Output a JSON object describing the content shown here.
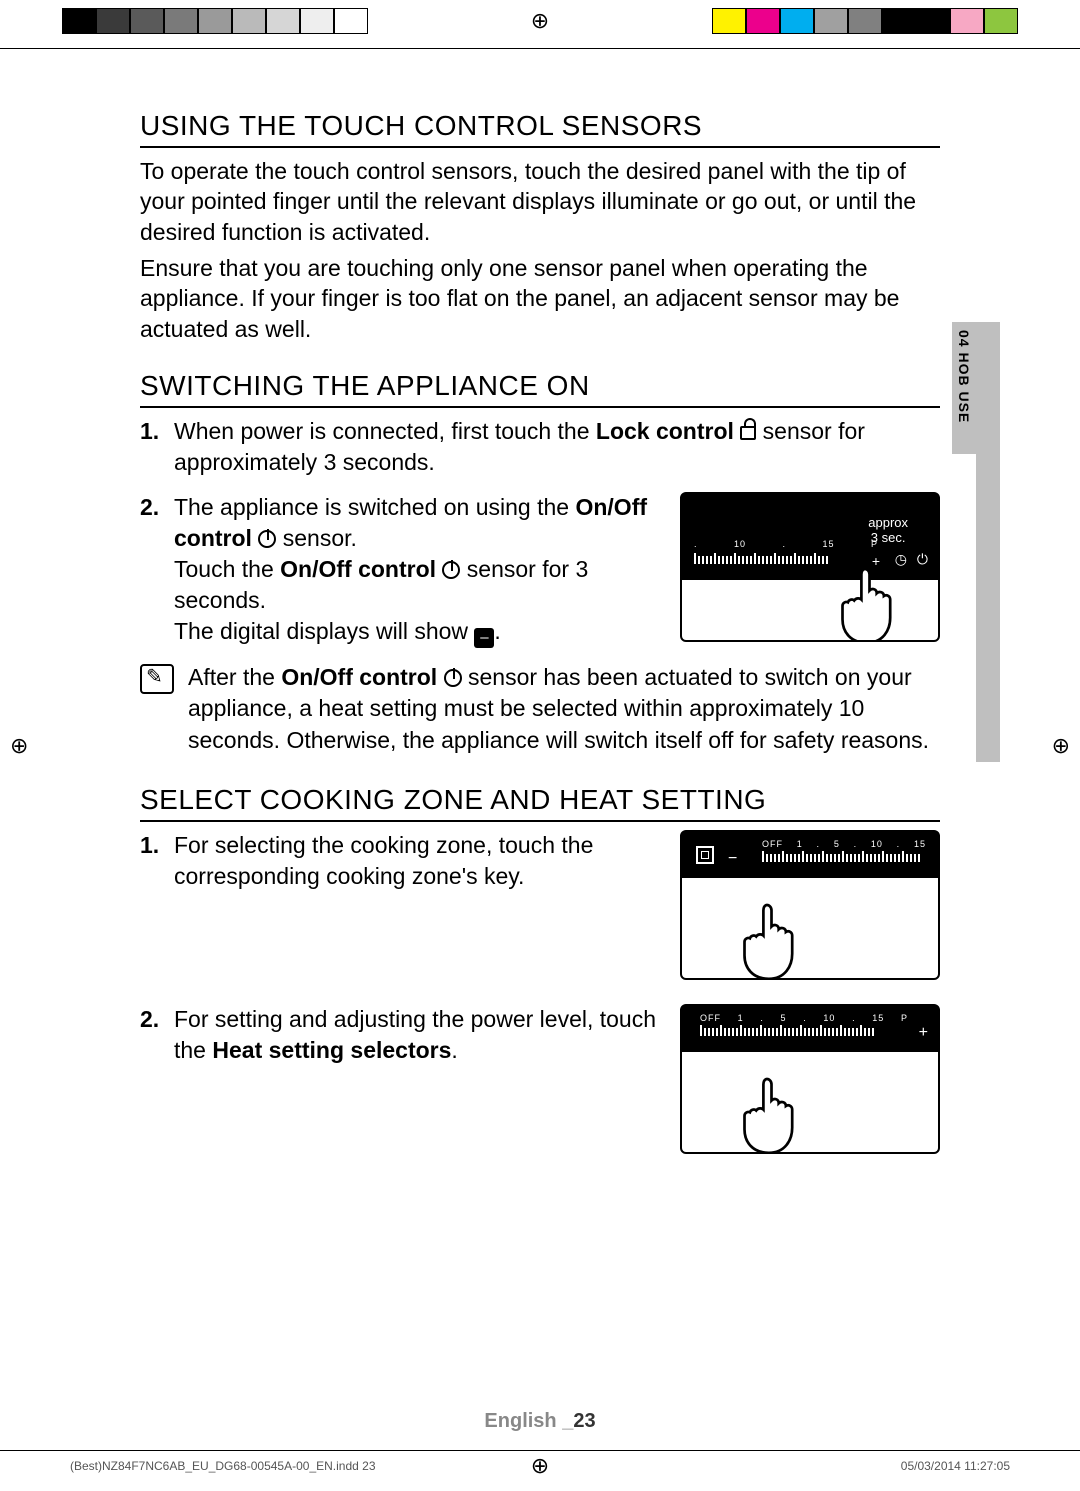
{
  "regbar": {
    "left_colors": [
      "#000000",
      "#3a3a3a",
      "#5a5a5a",
      "#7a7a7a",
      "#9a9a9a",
      "#bababa",
      "#d6d6d6",
      "#eeeeee",
      "#ffffff"
    ],
    "right_colors": [
      "#fff200",
      "#ec008c",
      "#00aeef",
      "#a0a0a0",
      "#808080",
      "#000000",
      "#000000",
      "#f7a8c4",
      "#8dc63f"
    ]
  },
  "side_tab_label": "04  HOB USE",
  "sections": {
    "s1": {
      "title": "USING THE TOUCH CONTROL SENSORS",
      "para1": "To operate the touch control sensors, touch the desired panel with the tip of your pointed finger until the relevant displays illuminate or go out, or until the desired function is activated.",
      "para2": "Ensure that you are touching only one sensor panel when operating the appliance. If your finger is too flat on the panel, an adjacent sensor may be actuated as well."
    },
    "s2": {
      "title": "SWITCHING THE APPLIANCE ON",
      "step1_a": "When power is connected, first touch the ",
      "step1_bold": "Lock control",
      "step1_b": " sensor for approximately 3 seconds.",
      "step2_a": "The appliance is switched on using the ",
      "step2_bold1": "On/Off control",
      "step2_b": " sensor.",
      "step2_c": "Touch the ",
      "step2_bold2": "On/Off control",
      "step2_d": " sensor for 3 seconds.",
      "step2_e": "The digital displays will show ",
      "panel1": {
        "approx_l1": "approx",
        "approx_l2": "3 sec.",
        "ticks_labels": [
          ".",
          "10",
          ".",
          "15",
          "P"
        ],
        "bg": "#000000",
        "fg": "#ffffff"
      },
      "note_a": "After the ",
      "note_bold": "On/Off control",
      "note_b": " sensor has been actuated to switch on your appliance, a heat setting must be selected within approximately 10 seconds. Otherwise, the appliance will switch itself off for safety reasons."
    },
    "s3": {
      "title": "SELECT COOKING ZONE AND HEAT SETTING",
      "step1": "For selecting the cooking zone, touch the corresponding cooking zone's key.",
      "panel2": {
        "ticks_labels": [
          "OFF",
          "1",
          ".",
          "5",
          ".",
          "10",
          ".",
          "15"
        ]
      },
      "step2_a": "For setting and adjusting the power level, touch the ",
      "step2_bold": "Heat setting selectors",
      "step2_b": ".",
      "panel3": {
        "ticks_labels": [
          "OFF",
          "1",
          ".",
          "5",
          ".",
          "10",
          ".",
          "15",
          "P"
        ]
      }
    }
  },
  "footer": {
    "lang": "English _",
    "page": "23",
    "file": "(Best)NZ84F7NC6AB_EU_DG68-00545A-00_EN.indd   23",
    "stamp": "05/03/2014   11:27:05"
  },
  "icons": {
    "display_char": "–"
  }
}
